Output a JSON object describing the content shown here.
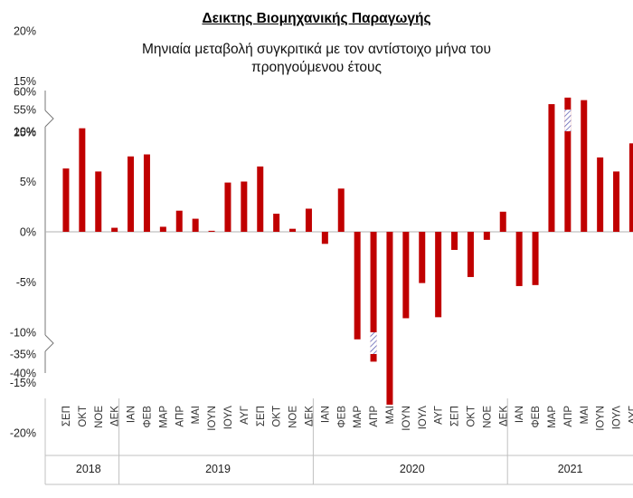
{
  "chart_data": {
    "type": "bar",
    "title": "Δεικτης Βιομηχανικής Παραγωγής",
    "subtitle_lines": [
      "Μηνιαία μεταβολή συγκριτικά με τον αντίστοιχο μήνα του",
      "προηγούμενου έτους"
    ],
    "xlabel": "",
    "ylabel": "",
    "axis_break": true,
    "y_tick_labels": [
      "60%",
      "55%",
      "25%",
      "20%",
      "15%",
      "10%",
      "5%",
      "0%",
      "-5%",
      "-10%",
      "-15%",
      "-20%",
      "-35%",
      "-40%"
    ],
    "bar_color": "#c00000",
    "grid": false,
    "categories": [
      "ΣΕΠ",
      "ΟΚΤ",
      "ΝΟΕ",
      "ΔΕΚ",
      "ΙΑΝ",
      "ΦΕΒ",
      "ΜΑΡ",
      "ΑΠΡ",
      "ΜΑΙ",
      "ΙΟΥΝ",
      "ΙΟΥΛ",
      "ΑΥΓ",
      "ΣΕΠ",
      "ΟΚΤ",
      "ΝΟΕ",
      "ΔΕΚ",
      "ΙΑΝ",
      "ΦΕΒ",
      "ΜΑΡ",
      "ΑΠΡ",
      "ΜΑΙ",
      "ΙΟΥΝ",
      "ΙΟΥΛ",
      "ΑΥΓ",
      "ΣΕΠ",
      "ΟΚΤ",
      "ΝΟΕ",
      "ΔΕΚ",
      "ΙΑΝ",
      "ΦΕΒ",
      "ΜΑΡ",
      "ΑΠΡ",
      "ΜΑΙ",
      "ΙΟΥΝ",
      "ΙΟΥΛ",
      "ΑΥΓ"
    ],
    "values": [
      6.3,
      10.3,
      6.0,
      0.4,
      7.5,
      7.7,
      0.5,
      2.1,
      1.3,
      0.1,
      4.9,
      5.0,
      6.5,
      1.8,
      0.3,
      2.3,
      -1.2,
      4.3,
      -10.7,
      -37.0,
      -17.2,
      -8.6,
      -5.1,
      -8.5,
      -1.8,
      -4.5,
      -0.8,
      2.0,
      -5.4,
      -5.3,
      12.7,
      58.0,
      13.1,
      7.4,
      6.0,
      8.8
    ],
    "years": [
      {
        "label": "2018",
        "start": 0,
        "count": 4
      },
      {
        "label": "2019",
        "start": 4,
        "count": 12
      },
      {
        "label": "2020",
        "start": 16,
        "count": 12
      },
      {
        "label": "2021",
        "start": 28,
        "count": 8
      }
    ]
  }
}
